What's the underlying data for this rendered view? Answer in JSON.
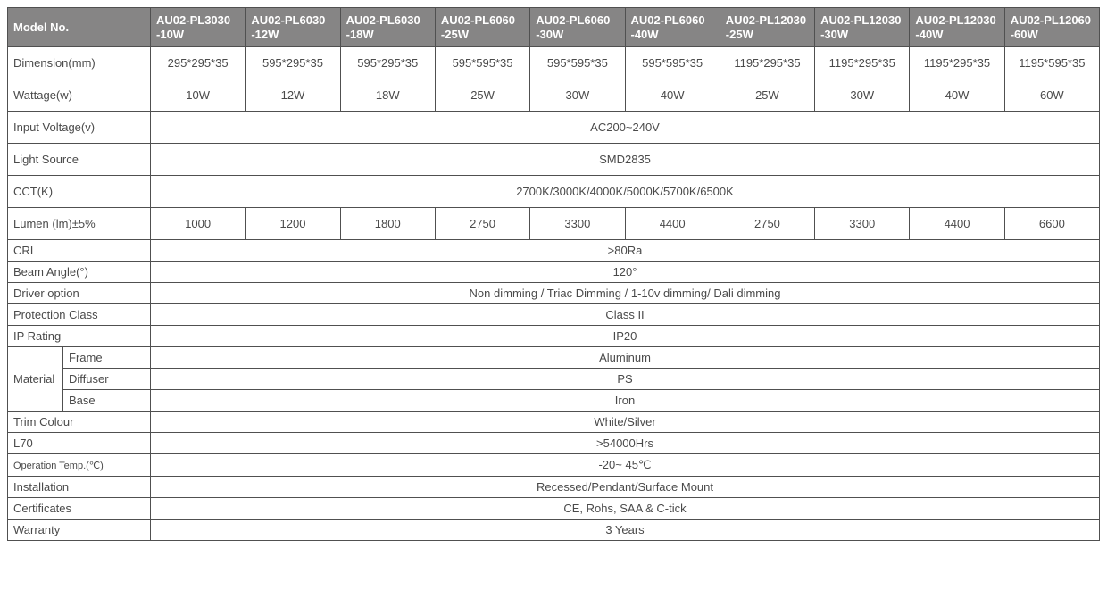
{
  "colors": {
    "headerBg": "#868585",
    "headerFg": "#ffffff",
    "border": "#505050",
    "text": "#4a4a4a",
    "background": "#ffffff"
  },
  "header": {
    "modelNo": "Model No.",
    "models": [
      "AU02-PL3030 -10W",
      "AU02-PL6030 -12W",
      "AU02-PL6030 -18W",
      "AU02-PL6060 -25W",
      "AU02-PL6060 -30W",
      "AU02-PL6060 -40W",
      "AU02-PL12030 -25W",
      "AU02-PL12030 -30W",
      "AU02-PL12030 -40W",
      "AU02-PL12060 -60W"
    ]
  },
  "rows": {
    "dimension": {
      "label": "Dimension(mm)",
      "values": [
        "295*295*35",
        "595*295*35",
        "595*295*35",
        "595*595*35",
        "595*595*35",
        "595*595*35",
        "1195*295*35",
        "1195*295*35",
        "1195*295*35",
        "1195*595*35"
      ]
    },
    "wattage": {
      "label": "Wattage(w)",
      "values": [
        "10W",
        "12W",
        "18W",
        "25W",
        "30W",
        "40W",
        "25W",
        "30W",
        "40W",
        "60W"
      ]
    },
    "voltage": {
      "label": "Input Voltage(v)",
      "value": "AC200~240V"
    },
    "lightSource": {
      "label": "Light Source",
      "value": "SMD2835"
    },
    "cct": {
      "label": "CCT(K)",
      "value": "2700K/3000K/4000K/5000K/5700K/6500K"
    },
    "lumen": {
      "label": "Lumen (lm)±5%",
      "values": [
        "1000",
        "1200",
        "1800",
        "2750",
        "3300",
        "4400",
        "2750",
        "3300",
        "4400",
        "6600"
      ]
    },
    "cri": {
      "label": "CRI",
      "value": ">80Ra"
    },
    "beam": {
      "label": "Beam Angle(°)",
      "value": "120°"
    },
    "driver": {
      "label": "Driver option",
      "value": "Non dimming / Triac Dimming / 1-10v dimming/ Dali dimming"
    },
    "protection": {
      "label": "Protection Class",
      "value": "Class II"
    },
    "ip": {
      "label": "IP Rating",
      "value": "IP20"
    },
    "material": {
      "label": "Material",
      "frame": {
        "label": "Frame",
        "value": "Aluminum"
      },
      "diffuser": {
        "label": "Diffuser",
        "value": "PS"
      },
      "base": {
        "label": "Base",
        "value": "Iron"
      }
    },
    "trim": {
      "label": "Trim Colour",
      "value": "White/Silver"
    },
    "l70": {
      "label": "L70",
      "value": ">54000Hrs"
    },
    "opTemp": {
      "label": "Operation Temp.(℃)",
      "value": "-20~ 45℃"
    },
    "install": {
      "label": "Installation",
      "value": "Recessed/Pendant/Surface Mount"
    },
    "cert": {
      "label": "Certificates",
      "value": "CE, Rohs, SAA & C-tick"
    },
    "warranty": {
      "label": "Warranty",
      "value": "3 Years"
    }
  }
}
